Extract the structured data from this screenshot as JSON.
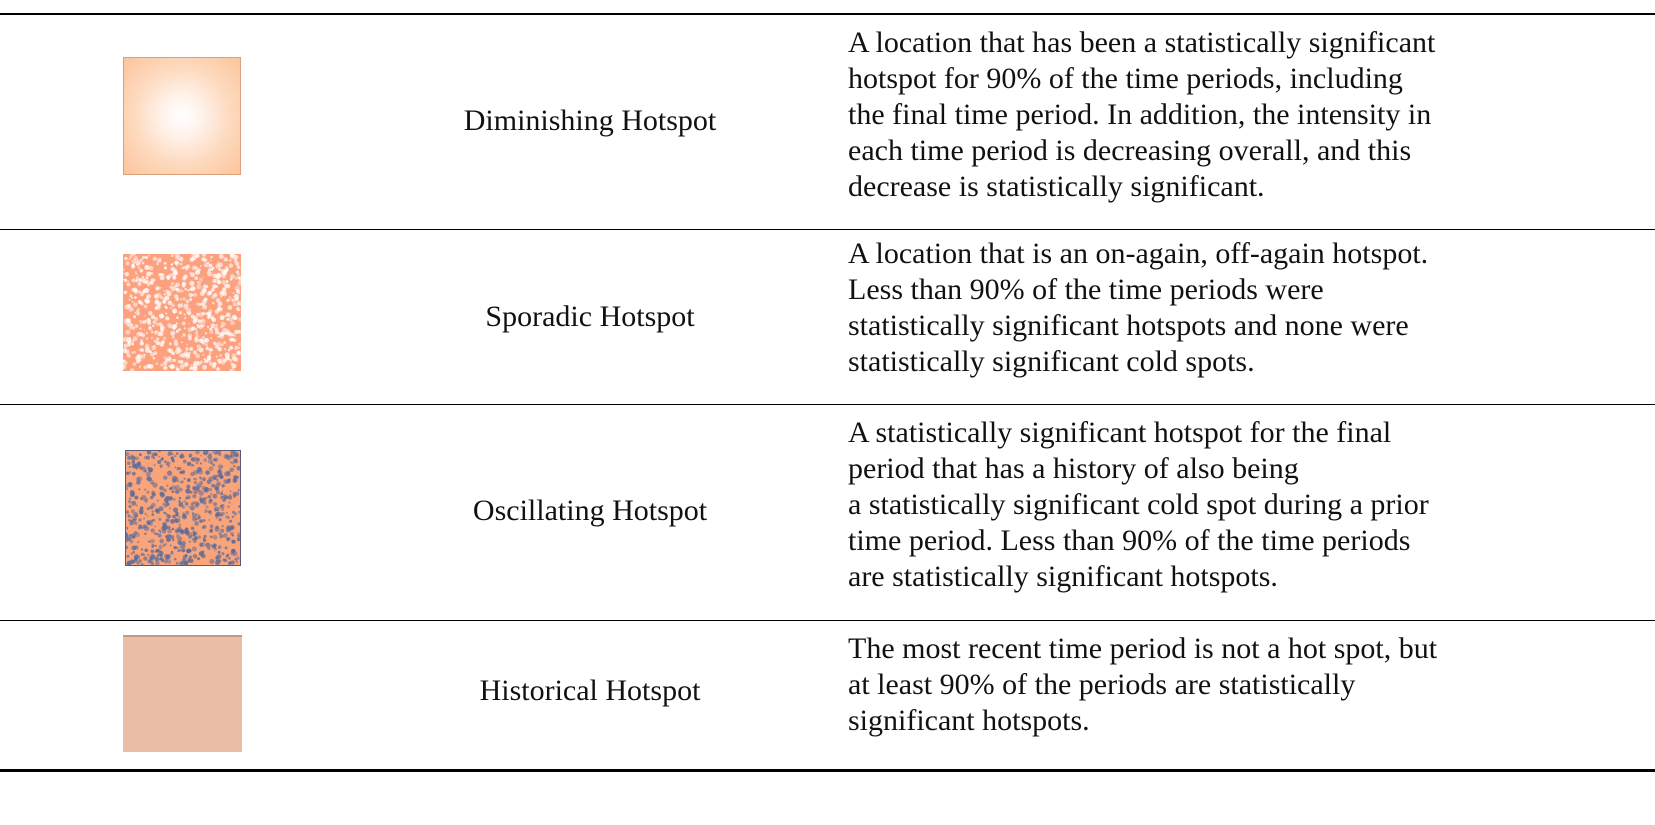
{
  "table": {
    "rows": [
      {
        "swatch": "gradient-center-white",
        "color": "#fcc49c",
        "label": "Diminishing Hotspot",
        "description": "A location that has been a statistically significant\nhotspot for 90% of the time periods, including\nthe final time period. In addition, the intensity in\neach time period is decreasing overall, and this\ndecrease is statistically significant."
      },
      {
        "swatch": "speckled-white",
        "color": "#fca07e",
        "label": "Sporadic Hotspot",
        "description": "A location that is an on-again, off-again hotspot.\nLess than 90% of the time periods were\nstatistically significant hotspots and none were\nstatistically significant cold spots."
      },
      {
        "swatch": "speckled-blue",
        "color": "#f9a47a",
        "accent": "#5a6a9a",
        "label": "Oscillating Hotspot",
        "description": "A statistically significant hotspot for the final\nperiod that has a history of also being\na statistically significant cold spot during a prior\ntime period. Less than 90% of the time periods\nare statistically significant hotspots."
      },
      {
        "swatch": "solid",
        "color": "#e9bea4",
        "label": "Historical Hotspot",
        "description": "The most recent time period is not a hot spot, but\nat least 90% of the periods are statistically\nsignificant hotspots."
      }
    ]
  }
}
